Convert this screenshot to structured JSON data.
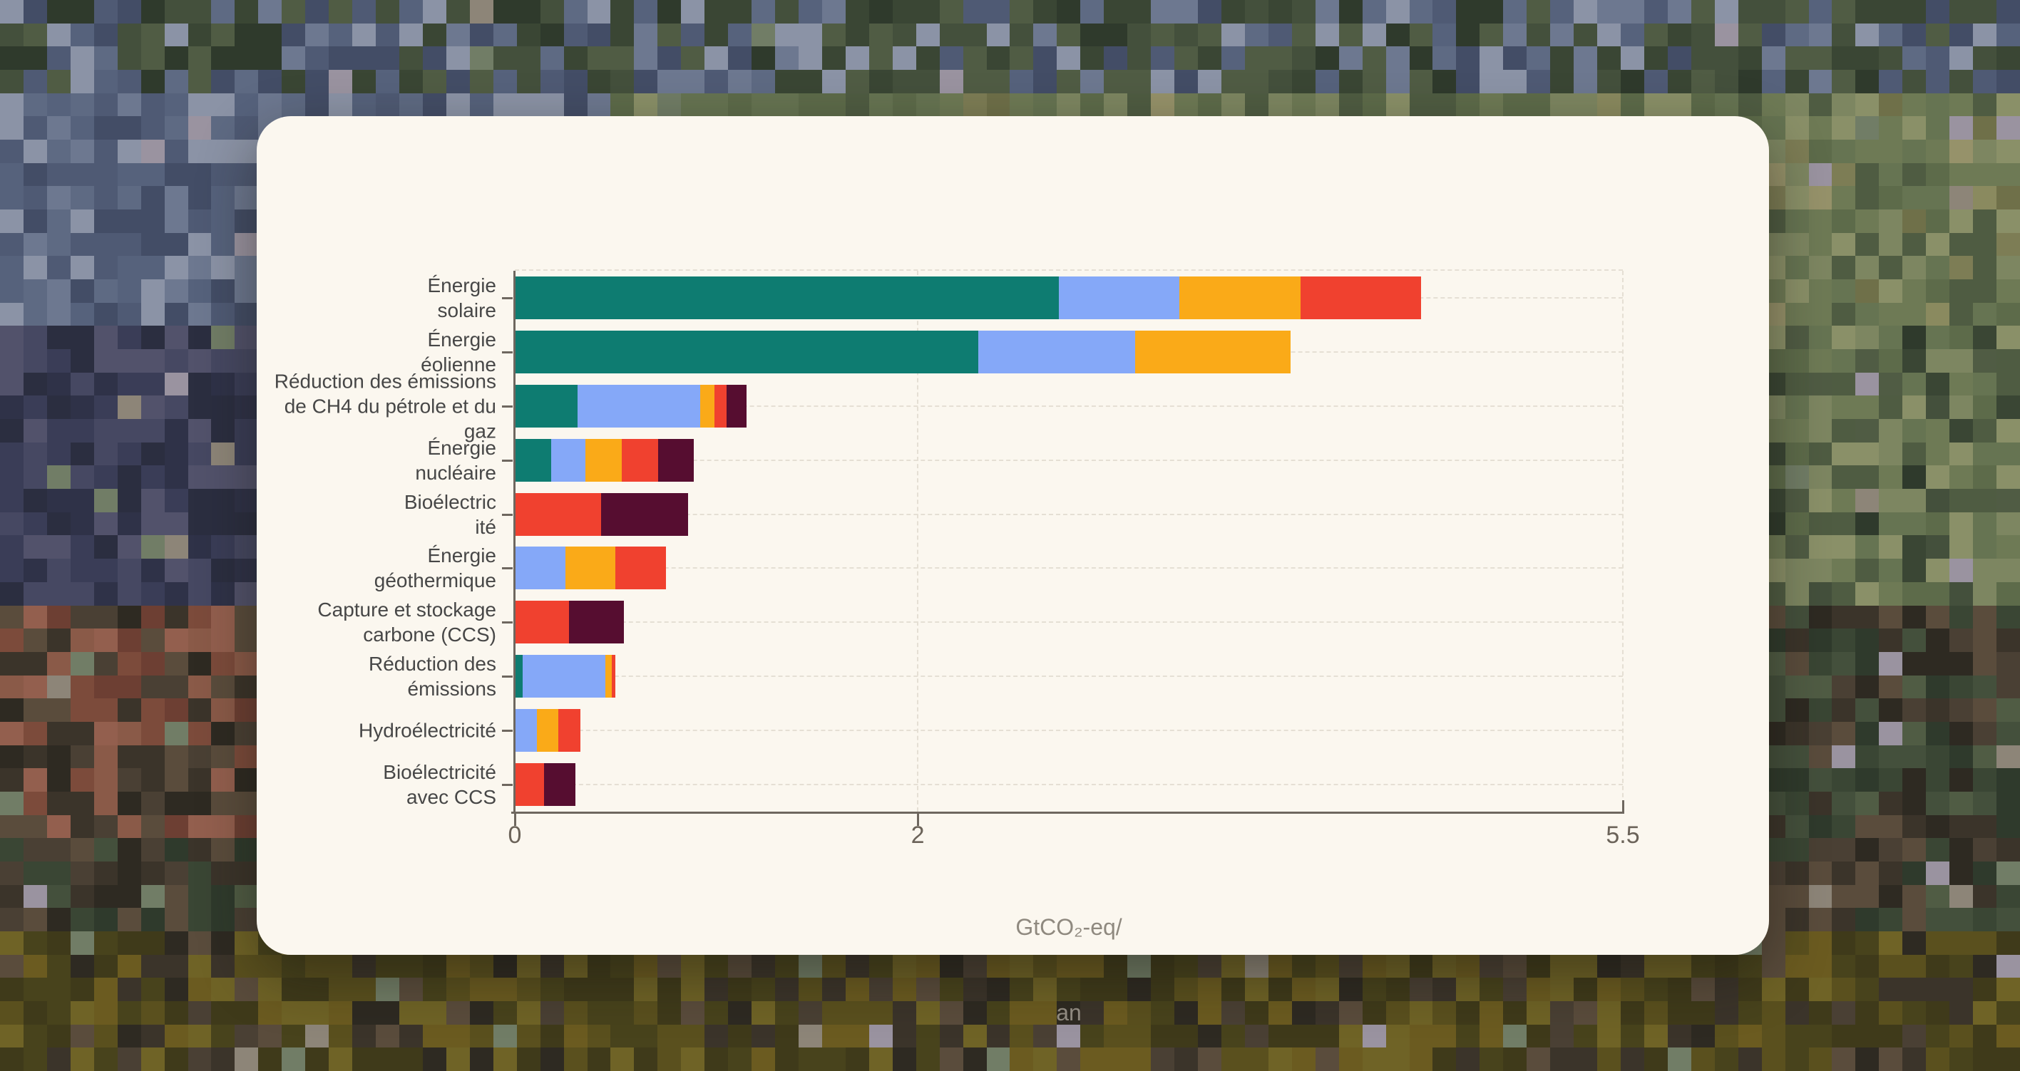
{
  "background": {
    "tile_size": 33,
    "palettes": {
      "slate": [
        "#5e6a83",
        "#4f5a74",
        "#6d7890",
        "#434d66",
        "#56627c",
        "#8b93a6"
      ],
      "navy": [
        "#3a3d57",
        "#2f3248",
        "#464862",
        "#52526b",
        "#2b2e40"
      ],
      "green": [
        "#6e7a55",
        "#5d6b4a",
        "#7d8661",
        "#4f5c42",
        "#8a9068",
        "#667452"
      ],
      "darkgreen": [
        "#44503c",
        "#3a4634",
        "#505c44",
        "#2f3a2c"
      ],
      "olive": [
        "#8a8a5f",
        "#7d7d55",
        "#96926a",
        "#6f7049"
      ],
      "tan": [
        "#a08a6a",
        "#b49a78",
        "#8d7a5e",
        "#c4ae8c"
      ],
      "brown": [
        "#4a4034",
        "#3b342a",
        "#5a4c3c",
        "#2e2a22"
      ],
      "redbrown": [
        "#7c4b3b",
        "#8a5a48",
        "#6d3f33",
        "#935f4e"
      ],
      "oliveband": [
        "#6b5b20",
        "#5a501e",
        "#48431c",
        "#6f6326",
        "#3f3a1a"
      ],
      "mist": [
        "#717d66",
        "#8d8578",
        "#9a93a0"
      ]
    }
  },
  "card": {
    "background": "#fbf7ef"
  },
  "chart_data": {
    "type": "bar",
    "orientation": "horizontal-stacked",
    "title": "",
    "xlabel": "GtCO₂-eq/an",
    "xlabel_lines": [
      "GtCO₂-eq/",
      "an"
    ],
    "ylabel": "",
    "xlim": [
      0,
      5.5
    ],
    "x_ticks": [
      0,
      2,
      5.5
    ],
    "x_tick_labels": [
      "0",
      "2",
      "5.5"
    ],
    "grid": "dashed",
    "legend": "none",
    "unit": "GtCO₂-eq/an",
    "segment_order": [
      "teal",
      "blue",
      "orange",
      "red",
      "maroon"
    ],
    "segment_colors": {
      "teal": "#0e7c71",
      "blue": "#85a8f8",
      "orange": "#faaa18",
      "red": "#f0412f",
      "maroon": "#560d30"
    },
    "rows": [
      {
        "id": "energie-solaire",
        "label": "Énergie solaire",
        "label_lines": [
          "Énergie",
          "solaire"
        ],
        "total": 4.5,
        "segments": [
          {
            "band": "teal",
            "value": 2.7
          },
          {
            "band": "blue",
            "value": 0.6
          },
          {
            "band": "orange",
            "value": 0.6
          },
          {
            "band": "red",
            "value": 0.6
          }
        ]
      },
      {
        "id": "energie-eolienne",
        "label": "Énergie éolienne",
        "label_lines": [
          "Énergie",
          "éolienne"
        ],
        "total": 3.85,
        "segments": [
          {
            "band": "teal",
            "value": 2.3
          },
          {
            "band": "blue",
            "value": 0.78
          },
          {
            "band": "orange",
            "value": 0.77
          }
        ]
      },
      {
        "id": "reduction-ch4-petrole-gaz",
        "label": "Réduction des émissions de CH4 du pétrole et du gaz",
        "label_lines": [
          "Réduction des émissions",
          "de CH4 du pétrole et du gaz"
        ],
        "total": 1.15,
        "segments": [
          {
            "band": "teal",
            "value": 0.31
          },
          {
            "band": "blue",
            "value": 0.61
          },
          {
            "band": "orange",
            "value": 0.07
          },
          {
            "band": "red",
            "value": 0.06
          },
          {
            "band": "maroon",
            "value": 0.1
          }
        ]
      },
      {
        "id": "energie-nucleaire",
        "label": "Énergie nucléaire",
        "label_lines": [
          "Énergie",
          "nucléaire"
        ],
        "total": 0.89,
        "segments": [
          {
            "band": "teal",
            "value": 0.18
          },
          {
            "band": "blue",
            "value": 0.17
          },
          {
            "band": "orange",
            "value": 0.18
          },
          {
            "band": "red",
            "value": 0.18
          },
          {
            "band": "maroon",
            "value": 0.18
          }
        ]
      },
      {
        "id": "bioelectricite",
        "label": "Bioélectricité",
        "label_lines": [
          "Bioélectric",
          "ité"
        ],
        "total": 0.86,
        "segments": [
          {
            "band": "red",
            "value": 0.43
          },
          {
            "band": "maroon",
            "value": 0.43
          }
        ]
      },
      {
        "id": "energie-geothermique",
        "label": "Énergie géothermique",
        "label_lines": [
          "Énergie",
          "géothermique"
        ],
        "total": 0.75,
        "segments": [
          {
            "band": "blue",
            "value": 0.25
          },
          {
            "band": "orange",
            "value": 0.25
          },
          {
            "band": "red",
            "value": 0.25
          }
        ]
      },
      {
        "id": "capture-stockage-carbone",
        "label": "Capture et stockage carbone (CCS)",
        "label_lines": [
          "Capture et stockage",
          "carbone (CCS)"
        ],
        "total": 0.54,
        "segments": [
          {
            "band": "red",
            "value": 0.27
          },
          {
            "band": "maroon",
            "value": 0.27
          }
        ]
      },
      {
        "id": "reduction-des-emissions",
        "label": "Réduction des émissions",
        "label_lines": [
          "Réduction des",
          "émissions"
        ],
        "total": 0.5,
        "segments": [
          {
            "band": "teal",
            "value": 0.04
          },
          {
            "band": "blue",
            "value": 0.41
          },
          {
            "band": "orange",
            "value": 0.03
          },
          {
            "band": "red",
            "value": 0.02
          }
        ]
      },
      {
        "id": "hydroelectricite",
        "label": "Hydroélectricité",
        "label_lines": [
          "Hydroélectricité"
        ],
        "total": 0.325,
        "segments": [
          {
            "band": "blue",
            "value": 0.11
          },
          {
            "band": "orange",
            "value": 0.105
          },
          {
            "band": "red",
            "value": 0.11
          }
        ]
      },
      {
        "id": "bioelectricite-avec-ccs",
        "label": "Bioélectricité avec CCS",
        "label_lines": [
          "Bioélectricité",
          "avec CCS"
        ],
        "total": 0.3,
        "segments": [
          {
            "band": "red",
            "value": 0.145
          },
          {
            "band": "maroon",
            "value": 0.155
          }
        ]
      }
    ]
  }
}
